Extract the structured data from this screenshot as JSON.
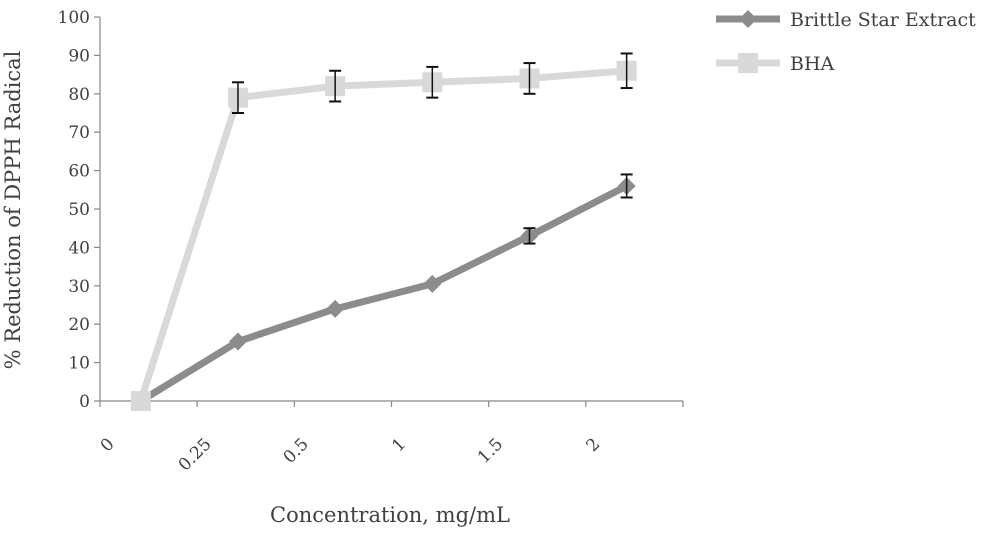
{
  "chart_data": {
    "type": "line",
    "categories": [
      "0",
      "0.25",
      "0.5",
      "1",
      "1.5",
      "2"
    ],
    "xlabel": "Concentration, mg/mL",
    "ylabel": "% Reduction of DPPH Radical",
    "ylim": [
      0,
      100
    ],
    "y_ticks": [
      "0",
      "10",
      "20",
      "30",
      "40",
      "50",
      "60",
      "70",
      "80",
      "90",
      "100"
    ],
    "grid": false,
    "legend_position": "top-right",
    "series": [
      {
        "name": "Brittle Star Extract",
        "values": [
          0,
          15.5,
          24,
          30.5,
          43,
          56
        ],
        "errors": [
          0,
          0,
          0,
          0,
          2,
          3
        ],
        "color": "#8c8c8c",
        "marker": "diamond"
      },
      {
        "name": "BHA",
        "values": [
          0,
          79,
          82,
          83,
          84,
          86
        ],
        "errors": [
          0,
          4,
          4,
          4,
          4,
          4.5
        ],
        "color": "#d9d9d9",
        "marker": "square"
      }
    ]
  }
}
